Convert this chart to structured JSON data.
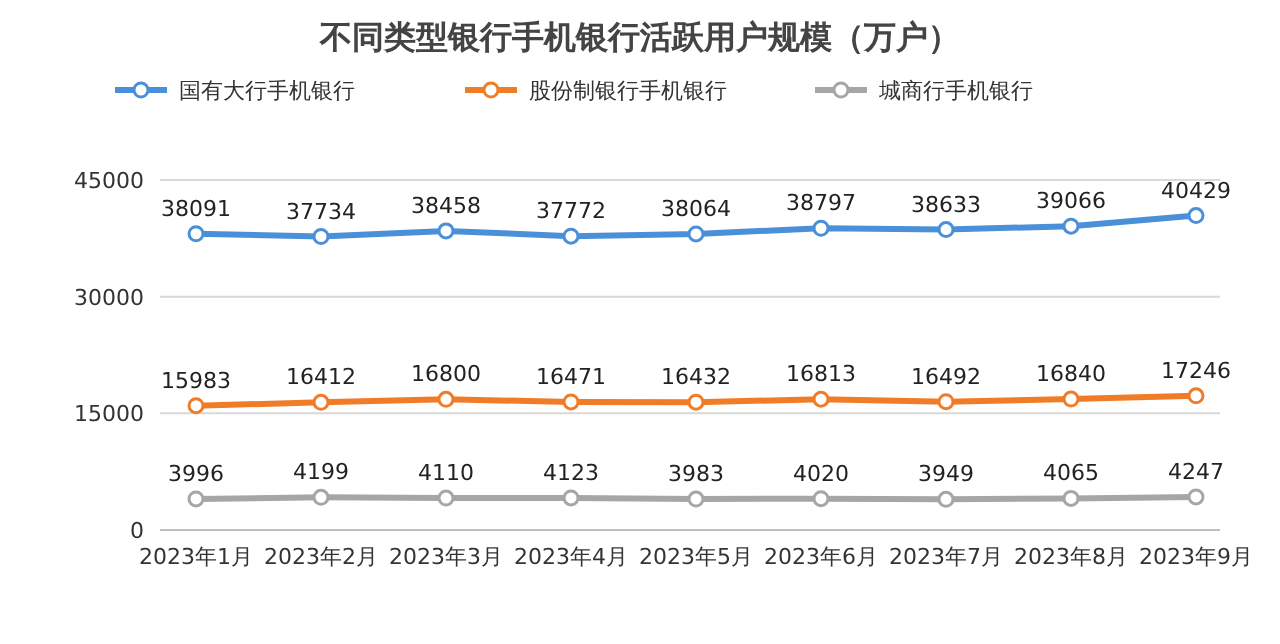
{
  "chart_data": {
    "type": "line",
    "title": "不同类型银行手机银行活跃用户规模（万户）",
    "categories": [
      "2023年1月",
      "2023年2月",
      "2023年3月",
      "2023年4月",
      "2023年5月",
      "2023年6月",
      "2023年7月",
      "2023年8月",
      "2023年9月"
    ],
    "series": [
      {
        "name": "国有大行手机银行",
        "color": "#4a90d9",
        "values": [
          38091,
          37734,
          38458,
          37772,
          38064,
          38797,
          38633,
          39066,
          40429
        ]
      },
      {
        "name": "股份制银行手机银行",
        "color": "#f07c28",
        "values": [
          15983,
          16412,
          16800,
          16471,
          16432,
          16813,
          16492,
          16840,
          17246
        ]
      },
      {
        "name": "城商行手机银行",
        "color": "#a6a6a6",
        "values": [
          3996,
          4199,
          4110,
          4123,
          3983,
          4020,
          3949,
          4065,
          4247
        ]
      }
    ],
    "ylim": [
      0,
      45000
    ],
    "yticks": [
      0,
      15000,
      30000,
      45000
    ],
    "grid": "y",
    "legend": "top",
    "marker": "circle",
    "line_style": "solid",
    "data_labels": true
  }
}
